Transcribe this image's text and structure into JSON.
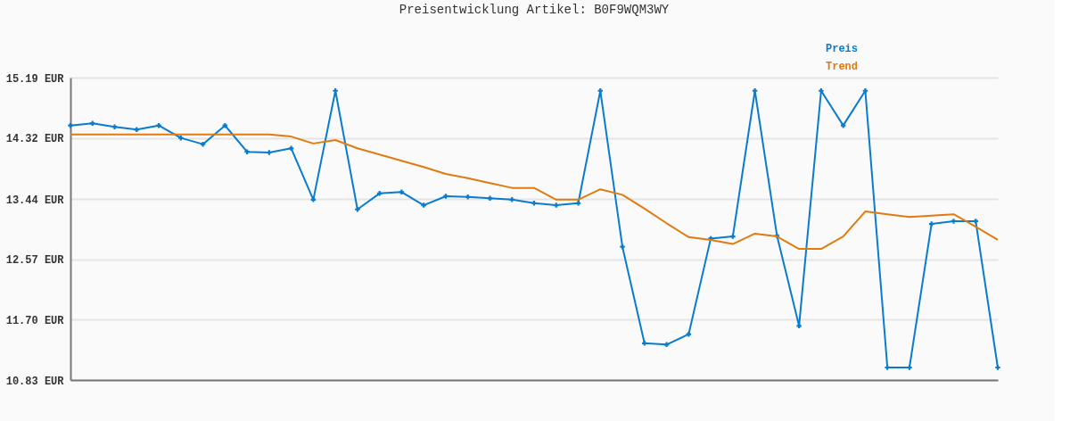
{
  "chart_data": {
    "type": "line",
    "title": "Preisentwicklung Artikel: B0F9WQM3WY",
    "categories": [
      null,
      null,
      null,
      null,
      null,
      null,
      null,
      null,
      null,
      null,
      null,
      null,
      null,
      null,
      null,
      null,
      null,
      null,
      null,
      null,
      null,
      null,
      null,
      null,
      null,
      null,
      null,
      null,
      null,
      null,
      null,
      null,
      null,
      null,
      null,
      null,
      null,
      null,
      null,
      null,
      null,
      null,
      null
    ],
    "series": [
      {
        "name": "Preis",
        "color": "#0a7ccd",
        "marker": "cross",
        "values": [
          14.5,
          14.53,
          14.48,
          14.44,
          14.5,
          14.32,
          14.23,
          14.5,
          14.12,
          14.11,
          14.17,
          13.43,
          15.0,
          13.29,
          13.52,
          13.54,
          13.35,
          13.48,
          13.47,
          13.45,
          13.43,
          13.38,
          13.35,
          13.38,
          15.0,
          12.75,
          11.36,
          11.34,
          11.49,
          12.87,
          12.9,
          15.0,
          12.91,
          11.61,
          15.0,
          14.5,
          15.0,
          11.01,
          11.01,
          13.08,
          13.12,
          13.12,
          11.01
        ]
      },
      {
        "name": "Trend",
        "color": "#e07b10",
        "marker": "none",
        "values": [
          14.37,
          14.37,
          14.37,
          14.37,
          14.37,
          14.37,
          14.37,
          14.37,
          14.37,
          14.37,
          14.34,
          14.24,
          14.29,
          14.17,
          14.08,
          13.99,
          13.9,
          13.8,
          13.74,
          13.67,
          13.6,
          13.6,
          13.43,
          13.43,
          13.58,
          13.5,
          13.3,
          13.09,
          12.89,
          12.85,
          12.79,
          12.94,
          12.9,
          12.72,
          12.72,
          12.9,
          13.26,
          13.22,
          13.18,
          13.2,
          13.22,
          13.04,
          12.85
        ]
      }
    ],
    "ylim": [
      10.83,
      15.19
    ],
    "yticks": [
      {
        "value": 10.83,
        "label": "10.83 EUR"
      },
      {
        "value": 11.7,
        "label": "11.70 EUR"
      },
      {
        "value": 12.57,
        "label": "12.57 EUR"
      },
      {
        "value": 13.44,
        "label": "13.44 EUR"
      },
      {
        "value": 14.32,
        "label": "14.32 EUR"
      },
      {
        "value": 15.19,
        "label": "15.19 EUR"
      }
    ],
    "grid": "y",
    "legend": "top right",
    "line_style": "solid"
  }
}
